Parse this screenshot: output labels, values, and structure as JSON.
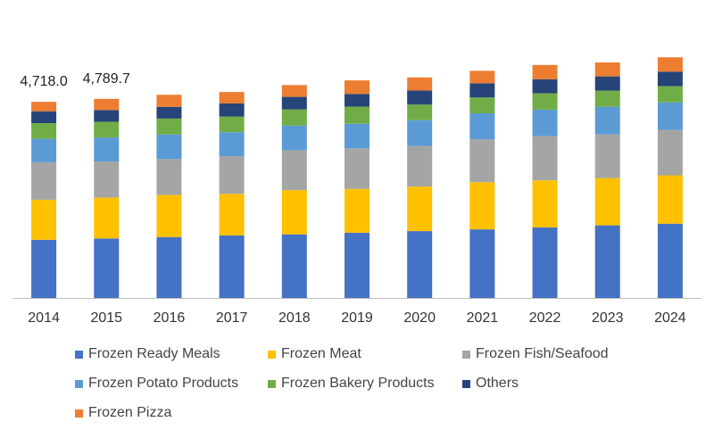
{
  "chart_data": {
    "type": "bar",
    "stacked": true,
    "title": "",
    "xlabel": "",
    "ylabel": "",
    "ylim": [
      0,
      7000
    ],
    "grid": false,
    "legend_position": "bottom",
    "categories": [
      "2014",
      "2015",
      "2016",
      "2017",
      "2018",
      "2019",
      "2020",
      "2021",
      "2022",
      "2023",
      "2024"
    ],
    "series": [
      {
        "name": "Frozen Ready Meals",
        "color": "#4472C4",
        "values": [
          1400,
          1432,
          1466,
          1504,
          1531,
          1570,
          1609,
          1651,
          1697,
          1748,
          1788
        ]
      },
      {
        "name": "Frozen Meat",
        "color": "#FFC000",
        "values": [
          964,
          985,
          1013,
          1002,
          1065,
          1054,
          1072,
          1135,
          1134,
          1138,
          1164
        ]
      },
      {
        "name": "Frozen Fish/Seafood",
        "color": "#A5A5A5",
        "values": [
          902,
          866,
          867,
          906,
          960,
          978,
          978,
          1032,
          1067,
          1055,
          1094
        ]
      },
      {
        "name": "Frozen Potato Products",
        "color": "#5B9BD5",
        "values": [
          565,
          580,
          587,
          578,
          593,
          591,
          622,
          627,
          635,
          661,
          661
        ]
      },
      {
        "name": "Frozen Bakery Products",
        "color": "#70AD47",
        "values": [
          377,
          377,
          385,
          376,
          388,
          413,
          373,
          382,
          394,
          387,
          390
        ]
      },
      {
        "name": "Others",
        "color": "#264478",
        "values": [
          286,
          283,
          282,
          316,
          303,
          305,
          340,
          340,
          338,
          344,
          350
        ]
      },
      {
        "name": "Frozen Pizza",
        "color": "#ED7D31",
        "values": [
          226,
          269,
          291,
          275,
          284,
          326,
          314,
          300,
          343,
          335,
          346
        ]
      }
    ],
    "data_labels": [
      {
        "category": "2014",
        "text": "4,718.0"
      },
      {
        "category": "2015",
        "text": "4,789.7"
      }
    ]
  }
}
